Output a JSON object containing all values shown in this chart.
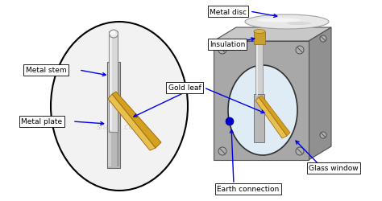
{
  "bg_color": "#ffffff",
  "labels": {
    "metal_disc": "Metal disc",
    "insulation": "Insulation",
    "gold_leaf": "Gold leaf",
    "metal_stem": "Metal stem",
    "metal_plate": "Metal plate",
    "earth_connection": "Earth connection",
    "glass_window": "Glass window"
  },
  "colors": {
    "box_face": "#a8a8a8",
    "box_edge": "#505050",
    "box_top": "#c8c8c8",
    "box_side": "#909090",
    "glass_fill": "#ddeeff",
    "glass_edge": "#303030",
    "stem_fill": "#d0d0d0",
    "stem_edge": "#808080",
    "plate_fill": "#b8b8b8",
    "plate_edge": "#686868",
    "gold_fill": "#d4a020",
    "gold_fill2": "#e8c050",
    "gold_edge": "#a07010",
    "disc_fill": "#e8e8e8",
    "disc_edge": "#a0a0a0",
    "insul_fill": "#c8a030",
    "insul_edge": "#a07820",
    "earth_dot": "#0000cc",
    "arrow_color": "#0000ee",
    "screw_fill": "#b0b0b0",
    "screw_edge": "#505050",
    "big_circle_edge": "#000000",
    "big_circle_fill": "#f2f2f2"
  }
}
